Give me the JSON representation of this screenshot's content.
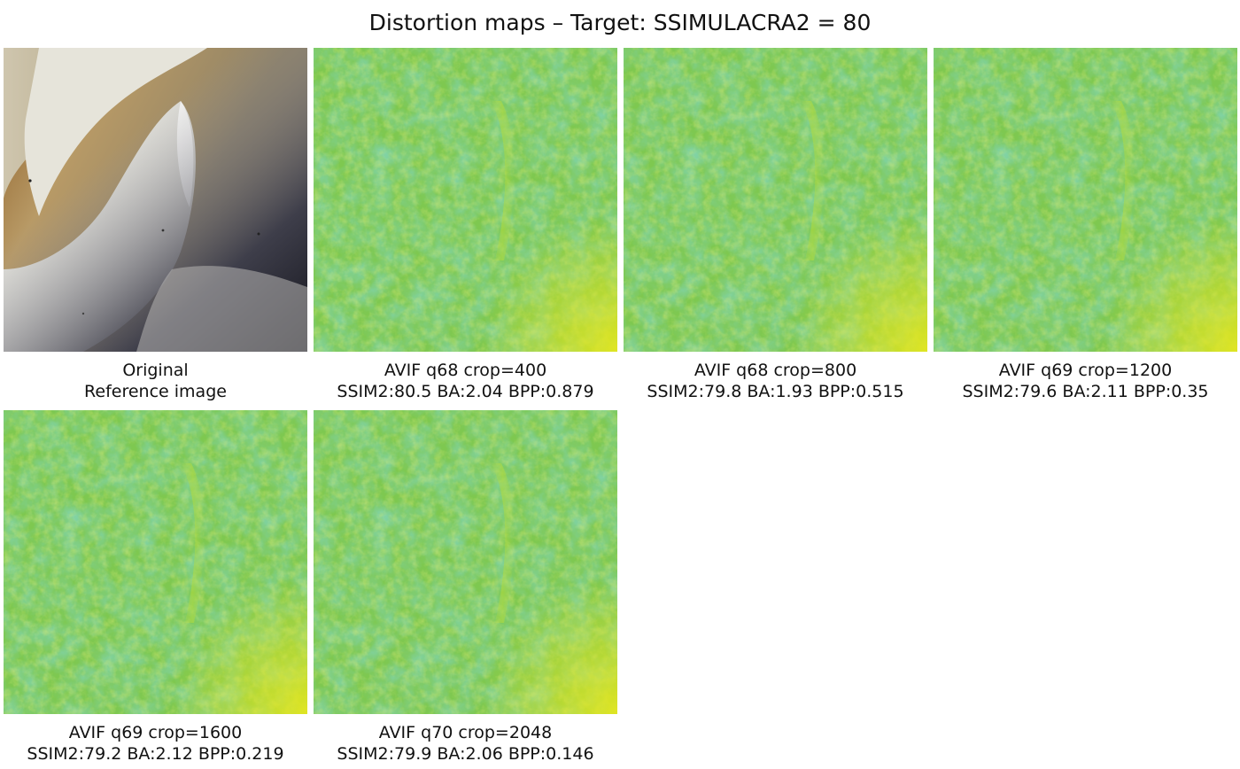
{
  "title": "Distortion maps – Target: SSIMULACRA2 = 80",
  "panels": [
    {
      "line1": "Original",
      "line2": "Reference image"
    },
    {
      "line1": "AVIF q68 crop=400",
      "line2": "SSIM2:80.5 BA:2.04 BPP:0.879"
    },
    {
      "line1": "AVIF q68 crop=800",
      "line2": "SSIM2:79.8 BA:1.93 BPP:0.515"
    },
    {
      "line1": "AVIF q69 crop=1200",
      "line2": "SSIM2:79.6 BA:2.11 BPP:0.35"
    },
    {
      "line1": "AVIF q69 crop=1600",
      "line2": "SSIM2:79.2 BA:2.12 BPP:0.219"
    },
    {
      "line1": "AVIF q70 crop=2048",
      "line2": "SSIM2:79.9 BA:2.06 BPP:0.146"
    }
  ],
  "colors": {
    "map_base": "#7ec850",
    "map_low": "#3fae6a",
    "map_high": "#c8e030"
  }
}
